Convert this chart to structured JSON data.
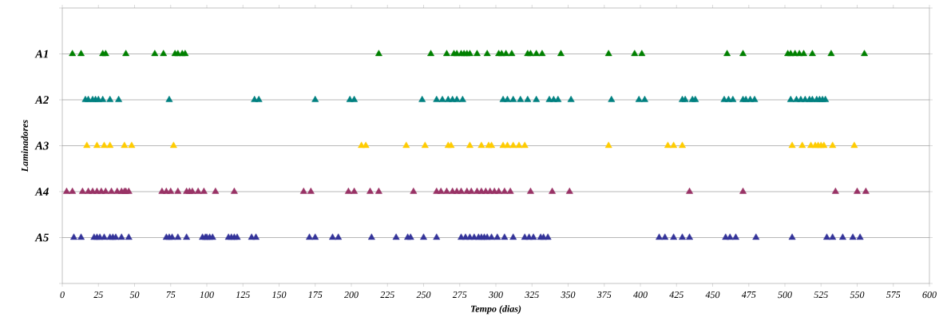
{
  "chart_data": {
    "type": "scatter",
    "orientation": "horizontal",
    "xlabel": "Tempo (dias)",
    "ylabel": "Laminadores",
    "xlim": [
      0,
      600
    ],
    "xticks": [
      0,
      25,
      50,
      75,
      100,
      125,
      150,
      175,
      200,
      225,
      250,
      275,
      300,
      325,
      350,
      375,
      400,
      425,
      450,
      475,
      500,
      525,
      550,
      575,
      600
    ],
    "categories": [
      "A1",
      "A2",
      "A3",
      "A4",
      "A5"
    ],
    "grid": "y",
    "marker": "triangle",
    "series": [
      {
        "color": "#008000",
        "x": [
          "A1",
          "A1",
          "A1",
          "A1",
          "A1",
          "A1",
          "A1",
          "A1",
          "A1",
          "A1",
          "A1",
          "A1",
          "A1",
          "A1",
          "A1",
          "A1",
          "A1",
          "A1",
          "A1",
          "A1",
          "A1",
          "A1",
          "A1",
          "A1",
          "A1",
          "A1",
          "A1",
          "A1",
          "A1",
          "A1",
          "A1",
          "A1",
          "A1",
          "A1",
          "A1",
          "A1",
          "A1",
          "A1",
          "A1",
          "A1",
          "A1",
          "A1",
          "A1",
          "A1"
        ],
        "values": [
          7,
          13,
          28,
          30,
          44,
          64,
          70,
          78,
          80,
          83,
          85,
          219,
          255,
          266,
          271,
          273,
          276,
          278,
          280,
          282,
          287,
          294,
          302,
          304,
          307,
          311,
          322,
          324,
          328,
          332,
          345,
          378,
          396,
          401,
          460,
          471,
          502,
          504,
          507,
          510,
          513,
          519,
          532,
          555
        ]
      },
      {
        "color": "#008080",
        "x": [
          "A2",
          "A2",
          "A2",
          "A2",
          "A2",
          "A2",
          "A2",
          "A2",
          "A2",
          "A2",
          "A2",
          "A2",
          "A2",
          "A2",
          "A2",
          "A2",
          "A2",
          "A2",
          "A2",
          "A2",
          "A2",
          "A2",
          "A2",
          "A2",
          "A2",
          "A2",
          "A2",
          "A2",
          "A2",
          "A2",
          "A2",
          "A2",
          "A2",
          "A2",
          "A2",
          "A2",
          "A2",
          "A2",
          "A2",
          "A2",
          "A2",
          "A2",
          "A2",
          "A2",
          "A2",
          "A2",
          "A2",
          "A2",
          "A2",
          "A2",
          "A2",
          "A2",
          "A2",
          "A2",
          "A2"
        ],
        "values": [
          16,
          18,
          21,
          23,
          25,
          28,
          33,
          39,
          74,
          133,
          136,
          175,
          199,
          202,
          249,
          259,
          263,
          267,
          270,
          273,
          277,
          305,
          308,
          312,
          317,
          322,
          328,
          337,
          340,
          343,
          352,
          380,
          399,
          403,
          429,
          431,
          436,
          438,
          458,
          461,
          464,
          471,
          473,
          476,
          479,
          504,
          508,
          511,
          514,
          517,
          519,
          522,
          524,
          526,
          528
        ]
      },
      {
        "color": "#ffcc00",
        "x": [
          "A3",
          "A3",
          "A3",
          "A3",
          "A3",
          "A3",
          "A3",
          "A3",
          "A3",
          "A3",
          "A3",
          "A3",
          "A3",
          "A3",
          "A3",
          "A3",
          "A3",
          "A3",
          "A3",
          "A3",
          "A3",
          "A3",
          "A3",
          "A3",
          "A3",
          "A3",
          "A3",
          "A3",
          "A3",
          "A3",
          "A3",
          "A3",
          "A3",
          "A3",
          "A3"
        ],
        "values": [
          17,
          24,
          29,
          33,
          43,
          48,
          77,
          207,
          210,
          238,
          251,
          267,
          269,
          282,
          290,
          295,
          297,
          305,
          308,
          312,
          316,
          320,
          378,
          419,
          423,
          429,
          505,
          512,
          518,
          521,
          523,
          525,
          527,
          533,
          548
        ]
      },
      {
        "color": "#993366",
        "x": [
          "A4",
          "A4",
          "A4",
          "A4",
          "A4",
          "A4",
          "A4",
          "A4",
          "A4",
          "A4",
          "A4",
          "A4",
          "A4",
          "A4",
          "A4",
          "A4",
          "A4",
          "A4",
          "A4",
          "A4",
          "A4",
          "A4",
          "A4",
          "A4",
          "A4",
          "A4",
          "A4",
          "A4",
          "A4",
          "A4",
          "A4",
          "A4",
          "A4",
          "A4",
          "A4",
          "A4",
          "A4",
          "A4",
          "A4",
          "A4",
          "A4",
          "A4",
          "A4",
          "A4",
          "A4",
          "A4",
          "A4",
          "A4",
          "A4",
          "A4",
          "A4",
          "A4",
          "A4",
          "A4",
          "A4",
          "A4"
        ],
        "values": [
          3,
          7,
          14,
          18,
          21,
          24,
          27,
          30,
          34,
          38,
          41,
          43,
          44,
          46,
          69,
          72,
          75,
          80,
          86,
          88,
          90,
          94,
          98,
          106,
          119,
          167,
          172,
          198,
          202,
          213,
          219,
          243,
          259,
          262,
          266,
          270,
          273,
          276,
          280,
          283,
          287,
          290,
          293,
          296,
          299,
          302,
          306,
          310,
          324,
          339,
          351,
          434,
          471,
          535,
          550,
          556
        ]
      },
      {
        "color": "#333399",
        "x": [
          "A5",
          "A5",
          "A5",
          "A5",
          "A5",
          "A5",
          "A5",
          "A5",
          "A5",
          "A5",
          "A5",
          "A5",
          "A5",
          "A5",
          "A5",
          "A5",
          "A5",
          "A5",
          "A5",
          "A5",
          "A5",
          "A5",
          "A5",
          "A5",
          "A5",
          "A5",
          "A5",
          "A5",
          "A5",
          "A5",
          "A5",
          "A5",
          "A5",
          "A5",
          "A5",
          "A5",
          "A5",
          "A5",
          "A5",
          "A5",
          "A5",
          "A5",
          "A5",
          "A5",
          "A5",
          "A5",
          "A5",
          "A5",
          "A5",
          "A5",
          "A5",
          "A5",
          "A5",
          "A5",
          "A5",
          "A5",
          "A5",
          "A5",
          "A5",
          "A5",
          "A5",
          "A5",
          "A5",
          "A5",
          "A5",
          "A5",
          "A5",
          "A5",
          "A5",
          "A5"
        ],
        "values": [
          8,
          13,
          22,
          24,
          26,
          29,
          33,
          35,
          37,
          41,
          46,
          72,
          74,
          76,
          80,
          86,
          97,
          99,
          100,
          102,
          104,
          115,
          117,
          119,
          121,
          131,
          134,
          171,
          175,
          187,
          191,
          214,
          231,
          239,
          241,
          250,
          259,
          276,
          279,
          282,
          285,
          288,
          290,
          292,
          294,
          297,
          301,
          306,
          312,
          320,
          323,
          326,
          331,
          333,
          336,
          413,
          417,
          423,
          429,
          434,
          459,
          462,
          466,
          480,
          505,
          529,
          533,
          540,
          547,
          552
        ]
      }
    ]
  }
}
